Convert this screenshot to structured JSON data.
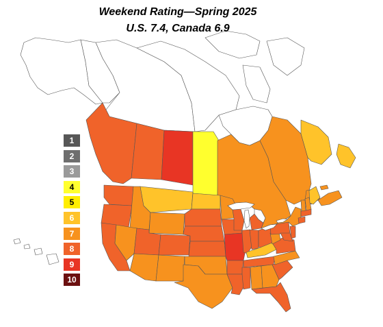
{
  "title": "Weekend Rating—Spring 2025",
  "subtitle": "U.S. 7.4, Canada 6.9",
  "legend": [
    {
      "label": "1",
      "color": "#575757"
    },
    {
      "label": "2",
      "color": "#6e6e6e"
    },
    {
      "label": "3",
      "color": "#9a9a9a"
    },
    {
      "label": "4",
      "color": "#ffff2e"
    },
    {
      "label": "5",
      "color": "#ffee00"
    },
    {
      "label": "6",
      "color": "#ffc32a"
    },
    {
      "label": "7",
      "color": "#f7921e"
    },
    {
      "label": "8",
      "color": "#f0632a"
    },
    {
      "label": "9",
      "color": "#e83524"
    },
    {
      "label": "10",
      "color": "#6b1010"
    }
  ],
  "colors": {
    "rating_4": "#ffff2e",
    "rating_6": "#ffc32a",
    "rating_7": "#f7921e",
    "rating_8": "#f0632a",
    "rating_9": "#e83524",
    "no_rating": "#ffffff",
    "border": "#555555"
  },
  "regions": [
    {
      "name": "Alaska",
      "rating": null
    },
    {
      "name": "Yukon",
      "rating": null
    },
    {
      "name": "Northwest Territories",
      "rating": null
    },
    {
      "name": "Nunavut",
      "rating": null
    },
    {
      "name": "British Columbia",
      "rating": 8
    },
    {
      "name": "Alberta",
      "rating": 8
    },
    {
      "name": "Saskatchewan",
      "rating": 9
    },
    {
      "name": "Manitoba",
      "rating": 4
    },
    {
      "name": "Ontario",
      "rating": 7
    },
    {
      "name": "Quebec",
      "rating": 7
    },
    {
      "name": "Newfoundland and Labrador",
      "rating": 6
    },
    {
      "name": "New Brunswick",
      "rating": 7
    },
    {
      "name": "Nova Scotia",
      "rating": 7
    },
    {
      "name": "Prince Edward Island",
      "rating": 7
    },
    {
      "name": "Washington",
      "rating": 8
    },
    {
      "name": "Oregon",
      "rating": 8
    },
    {
      "name": "California",
      "rating": 8
    },
    {
      "name": "Idaho",
      "rating": 7
    },
    {
      "name": "Nevada",
      "rating": 7
    },
    {
      "name": "Montana",
      "rating": 6
    },
    {
      "name": "Wyoming",
      "rating": 7
    },
    {
      "name": "Utah",
      "rating": 8
    },
    {
      "name": "Arizona",
      "rating": 7
    },
    {
      "name": "Colorado",
      "rating": 8
    },
    {
      "name": "New Mexico",
      "rating": 7
    },
    {
      "name": "North Dakota",
      "rating": 6
    },
    {
      "name": "South Dakota",
      "rating": 8
    },
    {
      "name": "Nebraska",
      "rating": 8
    },
    {
      "name": "Kansas",
      "rating": 8
    },
    {
      "name": "Oklahoma",
      "rating": 7
    },
    {
      "name": "Texas",
      "rating": 7
    },
    {
      "name": "Minnesota",
      "rating": 7
    },
    {
      "name": "Iowa",
      "rating": 8
    },
    {
      "name": "Missouri",
      "rating": 9
    },
    {
      "name": "Arkansas",
      "rating": 8
    },
    {
      "name": "Louisiana",
      "rating": 8
    },
    {
      "name": "Wisconsin",
      "rating": 8
    },
    {
      "name": "Illinois",
      "rating": 8
    },
    {
      "name": "Michigan",
      "rating": 8
    },
    {
      "name": "Indiana",
      "rating": 8
    },
    {
      "name": "Ohio",
      "rating": 8
    },
    {
      "name": "Kentucky",
      "rating": 6
    },
    {
      "name": "Tennessee",
      "rating": 8
    },
    {
      "name": "Mississippi",
      "rating": 8
    },
    {
      "name": "Alabama",
      "rating": 7
    },
    {
      "name": "Georgia",
      "rating": 7
    },
    {
      "name": "Florida",
      "rating": 8
    },
    {
      "name": "South Carolina",
      "rating": 8
    },
    {
      "name": "North Carolina",
      "rating": 7
    },
    {
      "name": "Virginia",
      "rating": 8
    },
    {
      "name": "West Virginia",
      "rating": 7
    },
    {
      "name": "Pennsylvania",
      "rating": 8
    },
    {
      "name": "New York",
      "rating": 7
    },
    {
      "name": "New Jersey",
      "rating": 8
    },
    {
      "name": "Maryland",
      "rating": 8
    },
    {
      "name": "Connecticut",
      "rating": 8
    },
    {
      "name": "Massachusetts",
      "rating": 8
    },
    {
      "name": "Vermont",
      "rating": 7
    },
    {
      "name": "New Hampshire",
      "rating": 7
    },
    {
      "name": "Maine",
      "rating": 6
    },
    {
      "name": "Hawaii",
      "rating": null
    }
  ]
}
